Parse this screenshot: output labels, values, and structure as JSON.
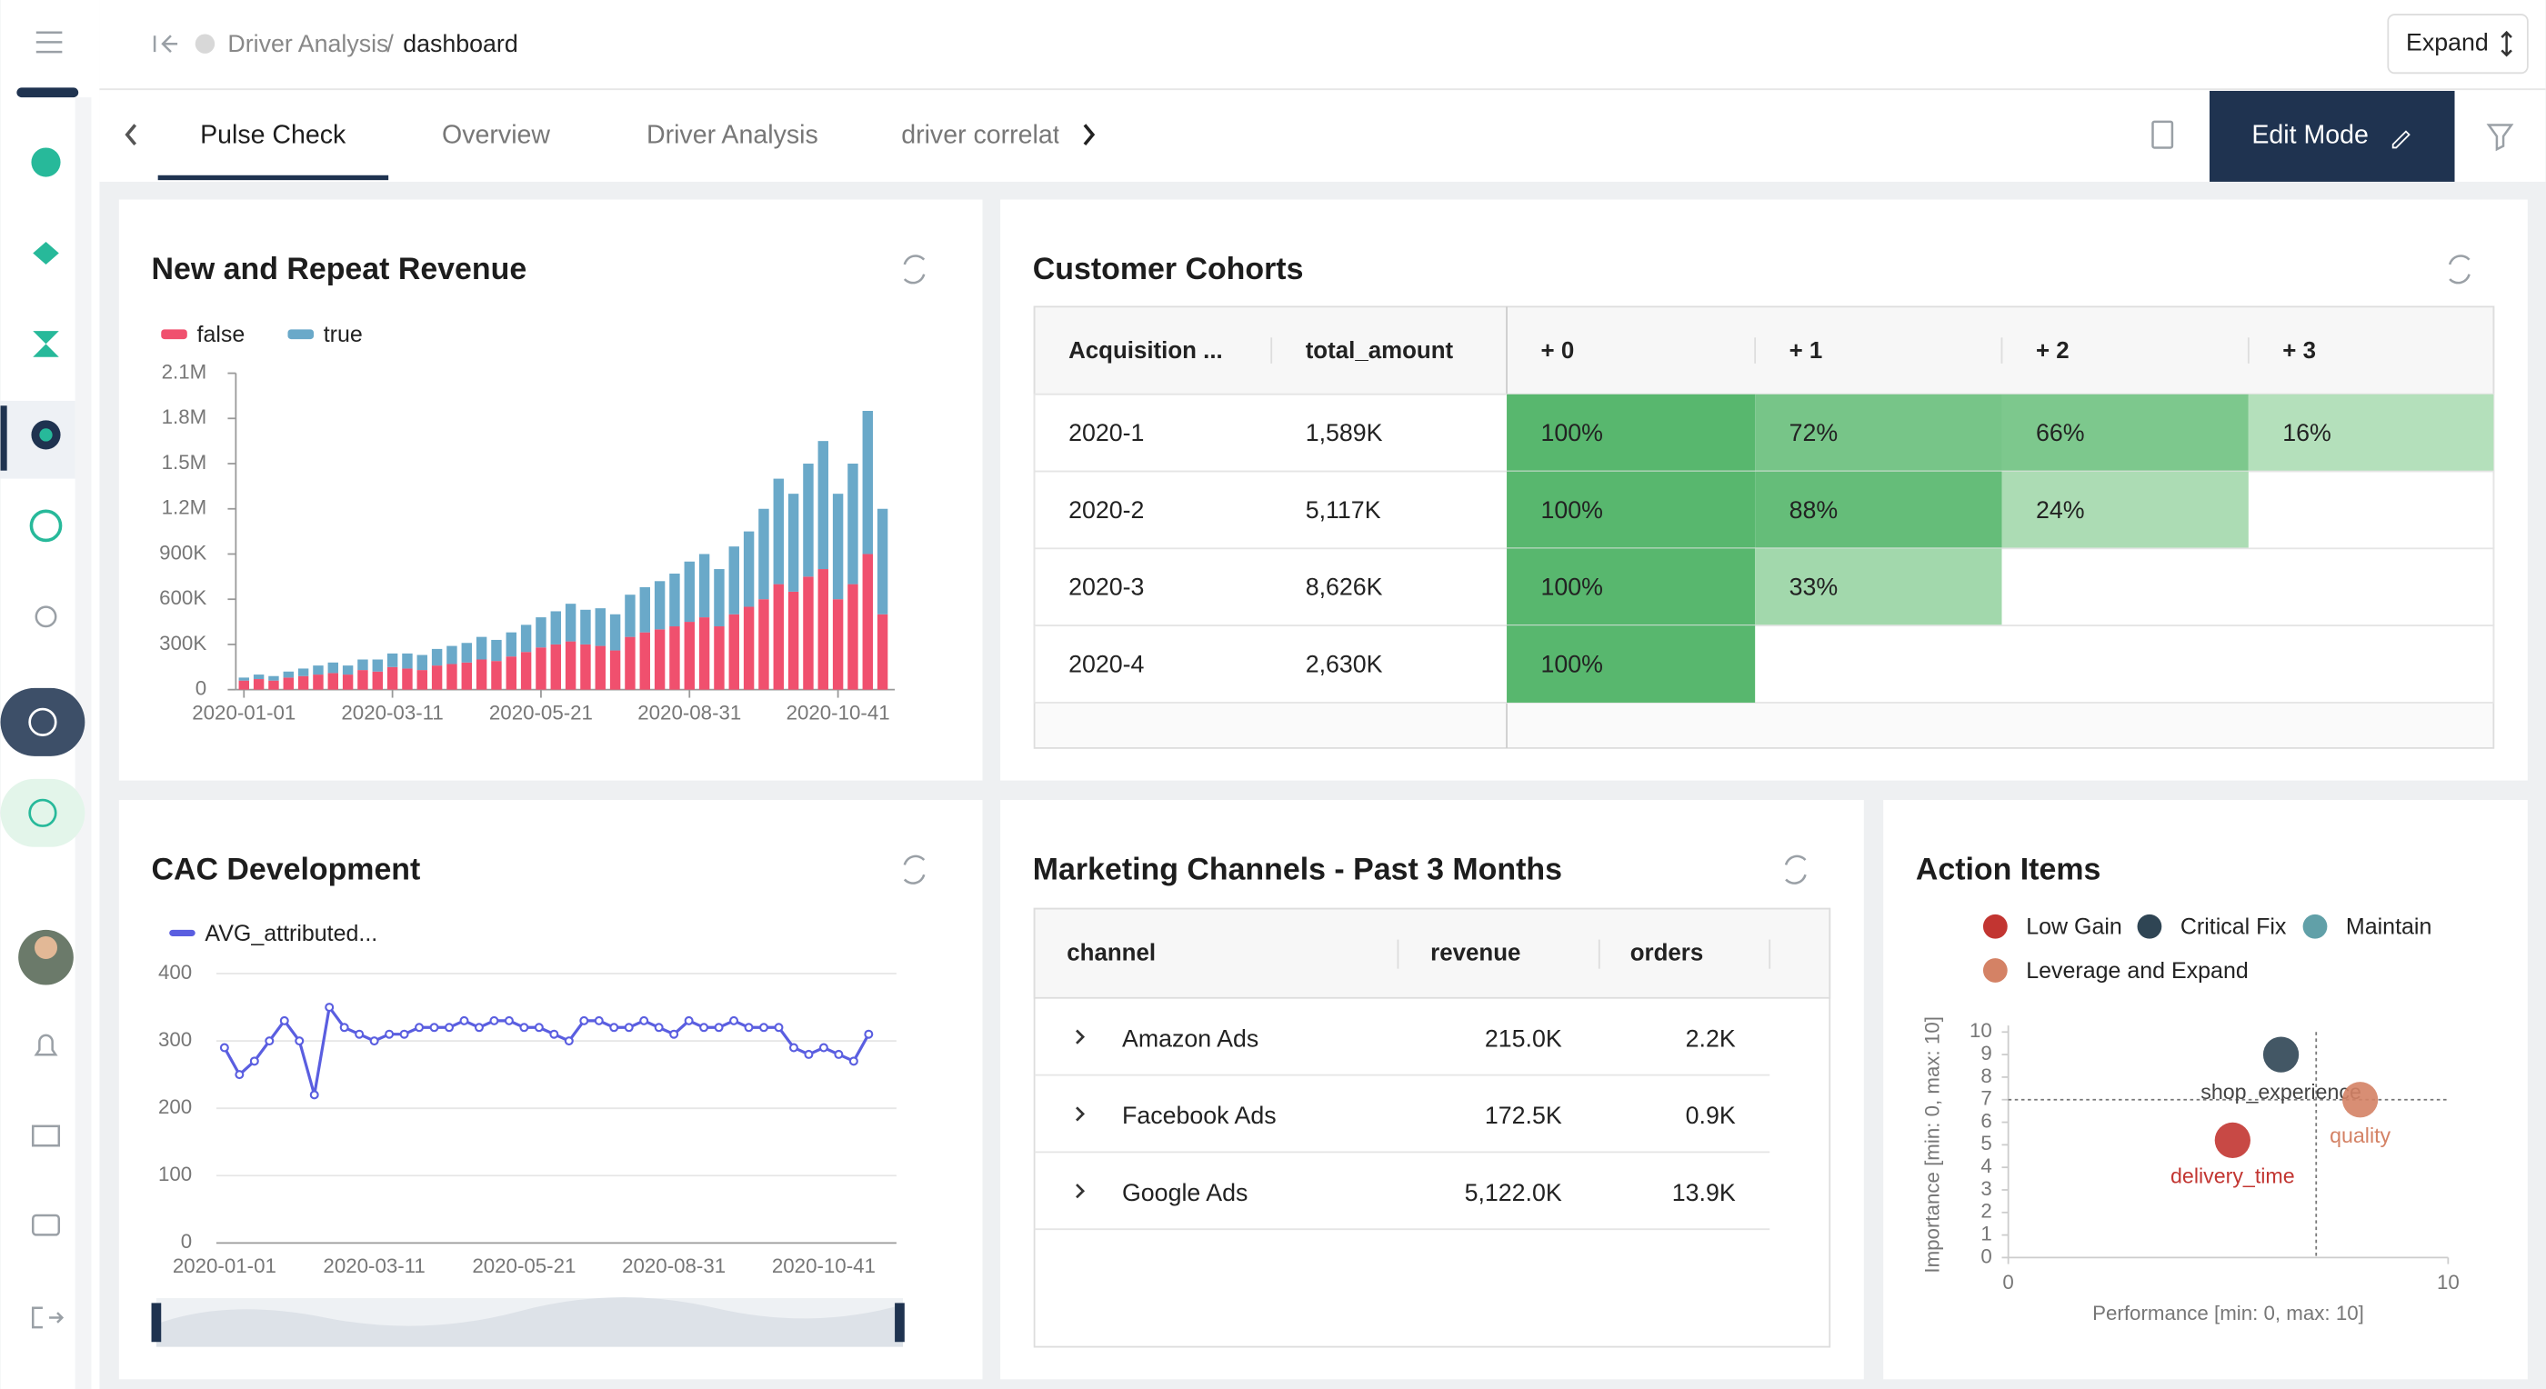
{
  "header": {
    "breadcrumb": [
      "Driver Analysis",
      "dashboard"
    ],
    "breadcrumb_separator": "/",
    "expand_button": "Expand"
  },
  "tabs": [
    "Pulse Check",
    "Overview",
    "Driver Analysis",
    "driver correlat"
  ],
  "edit_mode": "Edit Mode",
  "chart_data": [
    {
      "type": "bar",
      "stacked": true,
      "title": "New and Repeat Revenue",
      "categories": [
        "2020-01-01",
        null,
        null,
        null,
        null,
        null,
        null,
        null,
        null,
        null,
        "2020-03-11",
        null,
        null,
        null,
        null,
        null,
        null,
        null,
        null,
        null,
        "2020-05-21",
        null,
        null,
        null,
        null,
        null,
        null,
        null,
        null,
        null,
        "2020-08-31",
        null,
        null,
        null,
        null,
        null,
        null,
        null,
        null,
        null,
        "2020-10-41",
        null,
        null,
        null
      ],
      "series": [
        {
          "name": "false",
          "color": "#f0506e",
          "values": [
            60000,
            70000,
            60000,
            80000,
            90000,
            100000,
            110000,
            100000,
            130000,
            120000,
            150000,
            140000,
            130000,
            160000,
            170000,
            180000,
            200000,
            190000,
            220000,
            250000,
            280000,
            300000,
            320000,
            300000,
            290000,
            260000,
            350000,
            380000,
            400000,
            420000,
            450000,
            480000,
            420000,
            500000,
            550000,
            600000,
            700000,
            650000,
            750000,
            800000,
            600000,
            700000,
            900000,
            500000
          ]
        },
        {
          "name": "true",
          "color": "#6aa9c9",
          "values": [
            20000,
            30000,
            30000,
            40000,
            50000,
            60000,
            70000,
            60000,
            70000,
            80000,
            90000,
            100000,
            100000,
            110000,
            120000,
            130000,
            150000,
            140000,
            160000,
            180000,
            200000,
            220000,
            250000,
            230000,
            250000,
            240000,
            280000,
            300000,
            320000,
            350000,
            400000,
            420000,
            380000,
            450000,
            500000,
            600000,
            700000,
            650000,
            750000,
            850000,
            700000,
            800000,
            950000,
            700000
          ]
        }
      ],
      "ylim": [
        0,
        2100000
      ],
      "yticks": [
        0,
        {
          "value": 300000,
          "label": "300K"
        },
        {
          "value": 600000,
          "label": "600K"
        },
        {
          "value": 900000,
          "label": "900K"
        },
        {
          "value": 1200000,
          "label": "1.2M"
        },
        {
          "value": 1500000,
          "label": "1.5M"
        },
        {
          "value": 1800000,
          "label": "1.8M"
        },
        {
          "value": 2100000,
          "label": "2.1M"
        }
      ],
      "grid": false,
      "legend": "top-left"
    },
    {
      "type": "line",
      "title": "CAC Development",
      "categories": [
        "2020-01-01",
        null,
        null,
        null,
        null,
        null,
        null,
        null,
        null,
        null,
        "2020-03-11",
        null,
        null,
        null,
        null,
        null,
        null,
        null,
        null,
        null,
        "2020-05-21",
        null,
        null,
        null,
        null,
        null,
        null,
        null,
        null,
        null,
        "2020-08-31",
        null,
        null,
        null,
        null,
        null,
        null,
        null,
        null,
        null,
        "2020-10-41",
        null,
        null,
        null
      ],
      "series": [
        {
          "name": "AVG_attributed...",
          "color": "#5a5ee0",
          "values": [
            290,
            250,
            270,
            300,
            330,
            300,
            220,
            350,
            320,
            310,
            300,
            310,
            310,
            320,
            320,
            320,
            330,
            320,
            330,
            330,
            320,
            320,
            310,
            300,
            330,
            330,
            320,
            320,
            330,
            320,
            310,
            330,
            320,
            320,
            330,
            320,
            320,
            320,
            290,
            280,
            290,
            280,
            270,
            310
          ]
        }
      ],
      "ylim": [
        0,
        400
      ],
      "yticks": [
        0,
        100,
        200,
        300,
        400
      ],
      "grid": true,
      "legend": "top-left"
    },
    {
      "type": "scatter",
      "title": "Action Items",
      "x_label": "Performance [min: 0, max: 10]",
      "y_label": "Importance [min: 0, max: 10]",
      "series": [
        {
          "name": "Low Gain",
          "color": "#c23531",
          "x": [
            5.1
          ],
          "values": [
            5.2
          ],
          "labels": [
            "delivery_time"
          ]
        },
        {
          "name": "Critical Fix",
          "color": "#2f4554",
          "x": [
            6.2
          ],
          "values": [
            9.0
          ],
          "labels": [
            "shop_experience"
          ]
        },
        {
          "name": "Maintain",
          "color": "#61a0a8",
          "x": [],
          "values": [],
          "labels": []
        },
        {
          "name": "Leverage and Expand",
          "color": "#d48265",
          "x": [
            8.0
          ],
          "values": [
            7.0
          ],
          "labels": [
            "quality"
          ]
        }
      ],
      "reference_lines": {
        "x": 7,
        "y": 7
      },
      "xlim": [
        0,
        10
      ],
      "xticks": [
        0,
        10
      ],
      "ylim": [
        0,
        10
      ],
      "yticks": [
        0,
        1,
        2,
        3,
        4,
        5,
        6,
        7,
        8,
        9,
        10
      ],
      "legend": "top-left"
    }
  ],
  "cohorts": {
    "title": "Customer Cohorts",
    "columns": [
      "Acquisition ...",
      "total_amount",
      "+ 0",
      "+ 1",
      "+ 2",
      "+ 3"
    ],
    "rows": [
      [
        "2020-1",
        "1,589K",
        "100%",
        "72%",
        "66%",
        "16%"
      ],
      [
        "2020-2",
        "5,117K",
        "100%",
        "88%",
        "24%"
      ],
      [
        "2020-3",
        "8,626K",
        "100%",
        "33%"
      ],
      [
        "2020-4",
        "2,630K",
        "100%"
      ]
    ]
  },
  "channels": {
    "title": "Marketing Channels - Past 3 Months",
    "columns": [
      "channel",
      "revenue",
      "orders"
    ],
    "rows": [
      [
        "Amazon Ads",
        "215.0K",
        "2.2K"
      ],
      [
        "Facebook Ads",
        "172.5K",
        "0.9K"
      ],
      [
        "Google Ads",
        "5,122.0K",
        "13.9K"
      ]
    ]
  }
}
